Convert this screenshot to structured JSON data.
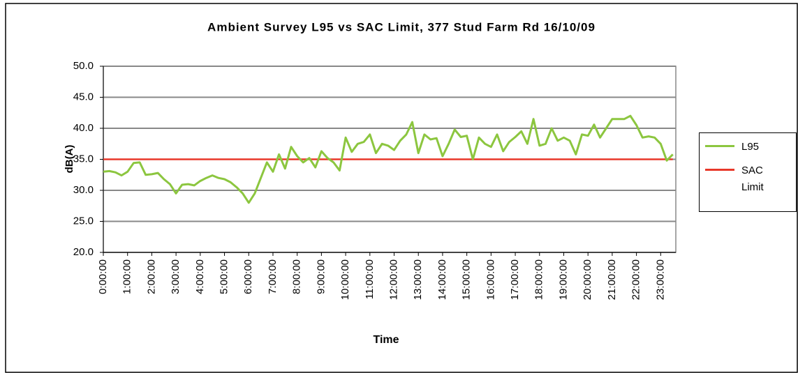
{
  "chart_data": {
    "type": "line",
    "title": "Ambient Survey L95 vs SAC Limit, 377 Stud Farm Rd 16/10/09",
    "x_label": "Time",
    "y_label": "dB(A)",
    "categories": [
      "0:00:00",
      null,
      null,
      null,
      "1:00:00",
      null,
      null,
      null,
      "2:00:00",
      null,
      null,
      null,
      "3:00:00",
      null,
      null,
      null,
      "4:00:00",
      null,
      null,
      null,
      "5:00:00",
      null,
      null,
      null,
      "6:00:00",
      null,
      null,
      null,
      "7:00:00",
      null,
      null,
      null,
      "8:00:00",
      null,
      null,
      null,
      "9:00:00",
      null,
      null,
      null,
      "10:00:00",
      null,
      null,
      null,
      "11:00:00",
      null,
      null,
      null,
      "12:00:00",
      null,
      null,
      null,
      "13:00:00",
      null,
      null,
      null,
      "14:00:00",
      null,
      null,
      null,
      "15:00:00",
      null,
      null,
      null,
      "16:00:00",
      null,
      null,
      null,
      "17:00:00",
      null,
      null,
      null,
      "18:00:00",
      null,
      null,
      null,
      "19:00:00",
      null,
      null,
      null,
      "20:00:00",
      null,
      null,
      null,
      "21:00:00",
      null,
      null,
      null,
      "22:00:00",
      null,
      null,
      null,
      "23:00:00",
      null,
      null
    ],
    "series": [
      {
        "name": "L95",
        "color": "#8cc63f",
        "values": [
          33.0,
          33.1,
          32.9,
          32.4,
          33.0,
          34.4,
          34.5,
          32.5,
          32.6,
          32.8,
          31.8,
          31.0,
          29.5,
          30.9,
          31.0,
          30.8,
          31.5,
          32.0,
          32.4,
          32.0,
          31.8,
          31.3,
          30.5,
          29.5,
          28.0,
          29.5,
          32.0,
          34.5,
          33.0,
          35.8,
          33.5,
          37.0,
          35.5,
          34.5,
          35.2,
          33.7,
          36.3,
          35.2,
          34.5,
          33.2,
          38.5,
          36.2,
          37.5,
          37.8,
          39.0,
          36.0,
          37.5,
          37.2,
          36.5,
          38.0,
          39.0,
          41.0,
          36.0,
          39.0,
          38.2,
          38.4,
          35.5,
          37.5,
          39.8,
          38.6,
          38.8,
          35.0,
          38.5,
          37.5,
          37.0,
          39.0,
          36.3,
          37.8,
          38.6,
          39.5,
          37.5,
          41.5,
          37.2,
          37.5,
          40.0,
          38.0,
          38.5,
          38.0,
          35.8,
          39.0,
          38.8,
          40.6,
          38.5,
          40.0,
          41.5,
          41.5,
          41.5,
          42.0,
          40.5,
          38.5,
          38.7,
          38.5,
          37.5,
          34.8,
          35.8
        ]
      },
      {
        "name": "SAC Limit",
        "color": "#e8382a",
        "values": [
          35,
          35,
          35,
          35,
          35,
          35,
          35,
          35,
          35,
          35,
          35,
          35,
          35,
          35,
          35,
          35,
          35,
          35,
          35,
          35,
          35,
          35,
          35,
          35,
          35,
          35,
          35,
          35,
          35,
          35,
          35,
          35,
          35,
          35,
          35,
          35,
          35,
          35,
          35,
          35,
          35,
          35,
          35,
          35,
          35,
          35,
          35,
          35,
          35,
          35,
          35,
          35,
          35,
          35,
          35,
          35,
          35,
          35,
          35,
          35,
          35,
          35,
          35,
          35,
          35,
          35,
          35,
          35,
          35,
          35,
          35,
          35,
          35,
          35,
          35,
          35,
          35,
          35,
          35,
          35,
          35,
          35,
          35,
          35,
          35,
          35,
          35,
          35,
          35,
          35,
          35,
          35,
          35,
          35,
          35
        ]
      }
    ],
    "ylim": [
      20,
      50
    ],
    "yticks": [
      {
        "value": 20,
        "label": "20.0"
      },
      {
        "value": 25,
        "label": "25.0"
      },
      {
        "value": 30,
        "label": "30.0"
      },
      {
        "value": 35,
        "label": "35.0"
      },
      {
        "value": 40,
        "label": "40.0"
      },
      {
        "value": 45,
        "label": "45.0"
      },
      {
        "value": 50,
        "label": "50.0"
      }
    ],
    "grid": true,
    "legend": "right"
  }
}
